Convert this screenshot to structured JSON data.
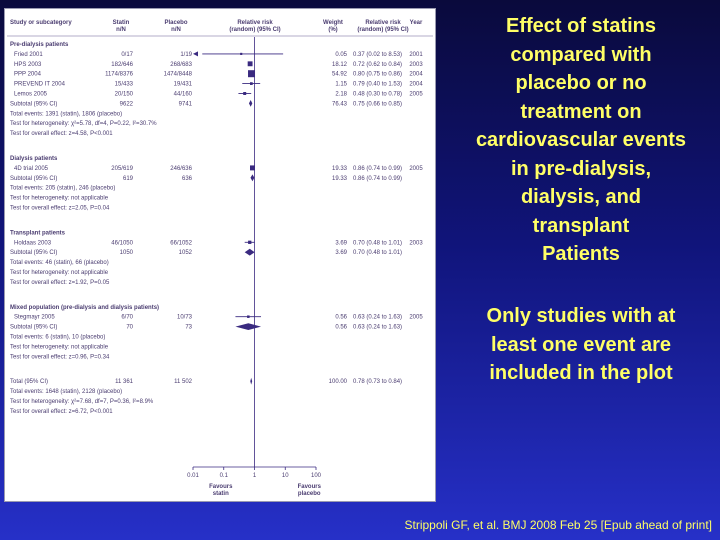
{
  "title_lines": [
    "Effect of statins",
    "compared with",
    "placebo or no",
    "treatment on",
    "cardiovascular events",
    "in pre-dialysis,",
    "dialysis, and",
    "transplant",
    "Patients"
  ],
  "note_lines": [
    "Only studies with at",
    "least one event are",
    "included in the plot"
  ],
  "citation": "Strippoli GF, et al. BMJ 2008 Feb 25 [Epub ahead of print]",
  "colors": {
    "text": "#4a3c70",
    "marker": "#3a2a80",
    "highlight": "#ffff66"
  },
  "chart_data": {
    "type": "forest",
    "x_scale": "log",
    "xlim": [
      0.01,
      100
    ],
    "x_ticks": [
      "0.01",
      "0.1",
      "1",
      "10",
      "100"
    ],
    "x_tick_values": [
      0.01,
      0.1,
      1,
      10,
      100
    ],
    "null_value": 1,
    "favours_left": [
      "Favours",
      "statin"
    ],
    "favours_right": [
      "Favours",
      "placebo"
    ],
    "columns": {
      "study": "Study or subcategory",
      "statin": [
        "Statin",
        "n/N"
      ],
      "placebo": [
        "Placebo",
        "n/N"
      ],
      "rr": [
        "Relative risk",
        "(random) (95% CI)"
      ],
      "weight": [
        "Weight",
        "(%)"
      ],
      "rrtext": [
        "Relative risk",
        "(random) (95% CI)"
      ],
      "year": "Year"
    },
    "rows": [
      {
        "kind": "section",
        "label": "Pre-dialysis patients"
      },
      {
        "kind": "study",
        "label": "Fried 2001",
        "statin": "0/17",
        "placebo": "1/19",
        "weight": "0.05",
        "rr": 0.37,
        "lo": 0.02,
        "hi": 8.53,
        "rrtext": "0.37 (0.02 to 8.53)",
        "year": "2001",
        "arrow_left": true
      },
      {
        "kind": "study",
        "label": "HPS 2003",
        "statin": "182/646",
        "placebo": "268/683",
        "weight": "18.12",
        "rr": 0.72,
        "lo": 0.62,
        "hi": 0.84,
        "rrtext": "0.72 (0.62 to 0.84)",
        "year": "2003"
      },
      {
        "kind": "study",
        "label": "PPP 2004",
        "statin": "1174/8376",
        "placebo": "1474/8448",
        "weight": "54.92",
        "rr": 0.8,
        "lo": 0.75,
        "hi": 0.86,
        "rrtext": "0.80 (0.75 to 0.86)",
        "year": "2004"
      },
      {
        "kind": "study",
        "label": "PREVEND IT 2004",
        "statin": "15/433",
        "placebo": "19/431",
        "weight": "1.15",
        "rr": 0.79,
        "lo": 0.4,
        "hi": 1.53,
        "rrtext": "0.79 (0.40 to 1.53)",
        "year": "2004"
      },
      {
        "kind": "study",
        "label": "Lemos 2005",
        "statin": "20/150",
        "placebo": "44/160",
        "weight": "2.18",
        "rr": 0.48,
        "lo": 0.3,
        "hi": 0.78,
        "rrtext": "0.48 (0.30 to 0.78)",
        "year": "2005"
      },
      {
        "kind": "subtotal",
        "label": "Subtotal (95% CI)",
        "statin": "9622",
        "placebo": "9741",
        "weight": "76.43",
        "rr": 0.75,
        "lo": 0.66,
        "hi": 0.85,
        "rrtext": "0.75 (0.66 to 0.85)"
      },
      {
        "kind": "stat",
        "label": "Total events: 1391 (statin), 1806 (placebo)"
      },
      {
        "kind": "stat",
        "label": "Test for heterogeneity: χ²=5.78, df=4, P=0.22, I²=30.7%"
      },
      {
        "kind": "stat",
        "label": "Test for overall effect: z=4.58, P<0.001"
      },
      {
        "kind": "gap"
      },
      {
        "kind": "section",
        "label": "Dialysis patients"
      },
      {
        "kind": "study",
        "label": "4D trial 2005",
        "statin": "205/619",
        "placebo": "246/636",
        "weight": "19.33",
        "rr": 0.86,
        "lo": 0.74,
        "hi": 0.99,
        "rrtext": "0.86 (0.74 to 0.99)",
        "year": "2005"
      },
      {
        "kind": "subtotal",
        "label": "Subtotal (95% CI)",
        "statin": "619",
        "placebo": "636",
        "weight": "19.33",
        "rr": 0.86,
        "lo": 0.74,
        "hi": 0.99,
        "rrtext": "0.86 (0.74 to 0.99)"
      },
      {
        "kind": "stat",
        "label": "Total events: 205 (statin), 246 (placebo)"
      },
      {
        "kind": "stat",
        "label": "Test for heterogeneity: not applicable"
      },
      {
        "kind": "stat",
        "label": "Test for overall effect: z=2.05, P=0.04"
      },
      {
        "kind": "gap"
      },
      {
        "kind": "section",
        "label": "Transplant patients"
      },
      {
        "kind": "study",
        "label": "Holdaas 2003",
        "statin": "46/1050",
        "placebo": "66/1052",
        "weight": "3.69",
        "rr": 0.7,
        "lo": 0.48,
        "hi": 1.01,
        "rrtext": "0.70 (0.48 to 1.01)",
        "year": "2003"
      },
      {
        "kind": "subtotal",
        "label": "Subtotal (95% CI)",
        "statin": "1050",
        "placebo": "1052",
        "weight": "3.69",
        "rr": 0.7,
        "lo": 0.48,
        "hi": 1.01,
        "rrtext": "0.70 (0.48 to 1.01)"
      },
      {
        "kind": "stat",
        "label": "Total events: 46 (statin), 66 (placebo)"
      },
      {
        "kind": "stat",
        "label": "Test for heterogeneity: not applicable"
      },
      {
        "kind": "stat",
        "label": "Test for overall effect: z=1.92, P=0.05"
      },
      {
        "kind": "gap"
      },
      {
        "kind": "section",
        "label": "Mixed population (pre-dialysis and dialysis patients)"
      },
      {
        "kind": "study",
        "label": "Stegmayr 2005",
        "statin": "6/70",
        "placebo": "10/73",
        "weight": "0.56",
        "rr": 0.63,
        "lo": 0.24,
        "hi": 1.63,
        "rrtext": "0.63 (0.24 to 1.63)",
        "year": "2005"
      },
      {
        "kind": "subtotal",
        "label": "Subtotal (95% CI)",
        "statin": "70",
        "placebo": "73",
        "weight": "0.56",
        "rr": 0.63,
        "lo": 0.24,
        "hi": 1.63,
        "rrtext": "0.63 (0.24 to 1.63)"
      },
      {
        "kind": "stat",
        "label": "Total events: 6 (statin), 10 (placebo)"
      },
      {
        "kind": "stat",
        "label": "Test for heterogeneity: not applicable"
      },
      {
        "kind": "stat",
        "label": "Test for overall effect: z=0.96, P=0.34"
      },
      {
        "kind": "gap"
      },
      {
        "kind": "total",
        "label": "Total (95% CI)",
        "statin": "11 361",
        "placebo": "11 502",
        "weight": "100.00",
        "rr": 0.78,
        "lo": 0.73,
        "hi": 0.84,
        "rrtext": "0.78 (0.73 to 0.84)"
      },
      {
        "kind": "stat",
        "label": "Total events: 1648 (statin), 2128 (placebo)"
      },
      {
        "kind": "stat",
        "label": "Test for heterogeneity: χ²=7.68, df=7, P=0.36, I²=8.9%"
      },
      {
        "kind": "stat",
        "label": "Test for overall effect: z=6.72, P<0.001"
      }
    ]
  }
}
